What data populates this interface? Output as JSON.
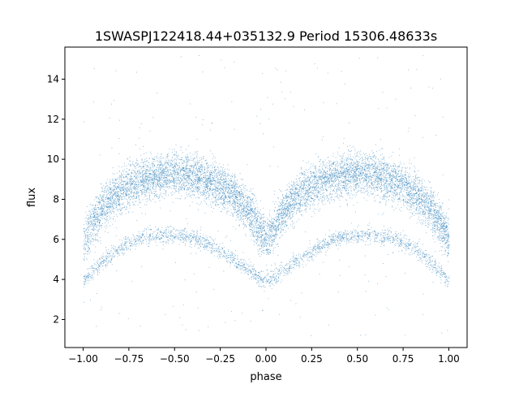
{
  "chart_data": {
    "type": "scatter",
    "title": "1SWASPJ122418.44+035132.9 Period 15306.48633s",
    "xlabel": "phase",
    "ylabel": "flux",
    "xlim": [
      -1.1,
      1.1
    ],
    "ylim": [
      0.6,
      15.6
    ],
    "x_ticks": [
      -1.0,
      -0.75,
      -0.5,
      -0.25,
      0.0,
      0.25,
      0.5,
      0.75,
      1.0
    ],
    "x_tick_labels": [
      "−1.00",
      "−0.75",
      "−0.50",
      "−0.25",
      "0.00",
      "0.25",
      "0.50",
      "0.75",
      "1.00"
    ],
    "y_ticks": [
      2,
      4,
      6,
      8,
      10,
      12,
      14
    ],
    "y_tick_labels": [
      "2",
      "4",
      "6",
      "8",
      "10",
      "12",
      "14"
    ],
    "grid": false,
    "legend": "none",
    "marker_color": "#1f77b4",
    "series": [
      {
        "role": "upper band (phase-folded light curve, dense points)",
        "x": [
          -1.0,
          -0.9,
          -0.8,
          -0.7,
          -0.6,
          -0.5,
          -0.4,
          -0.3,
          -0.2,
          -0.1,
          0.0,
          0.1,
          0.2,
          0.3,
          0.4,
          0.5,
          0.6,
          0.7,
          0.8,
          0.9,
          1.0
        ],
        "y": [
          6.0,
          7.5,
          8.4,
          8.9,
          9.2,
          9.3,
          9.2,
          8.9,
          8.4,
          7.5,
          6.0,
          7.5,
          8.4,
          8.9,
          9.2,
          9.3,
          9.2,
          8.9,
          8.4,
          7.5,
          6.0
        ],
        "scatter": 1.0
      },
      {
        "role": "lower band (phase-folded light curve)",
        "x": [
          -1.0,
          -0.9,
          -0.8,
          -0.7,
          -0.6,
          -0.5,
          -0.4,
          -0.3,
          -0.2,
          -0.1,
          0.0,
          0.1,
          0.2,
          0.3,
          0.4,
          0.5,
          0.6,
          0.7,
          0.8,
          0.9,
          1.0
        ],
        "y": [
          3.9,
          4.9,
          5.6,
          6.1,
          6.2,
          6.2,
          6.1,
          5.7,
          5.1,
          4.5,
          3.9,
          4.5,
          5.1,
          5.7,
          6.1,
          6.2,
          6.2,
          6.1,
          5.6,
          4.9,
          3.9
        ],
        "scatter": 0.2
      },
      {
        "role": "sparse outliers",
        "y_range": [
          1.2,
          15.2
        ]
      }
    ]
  }
}
